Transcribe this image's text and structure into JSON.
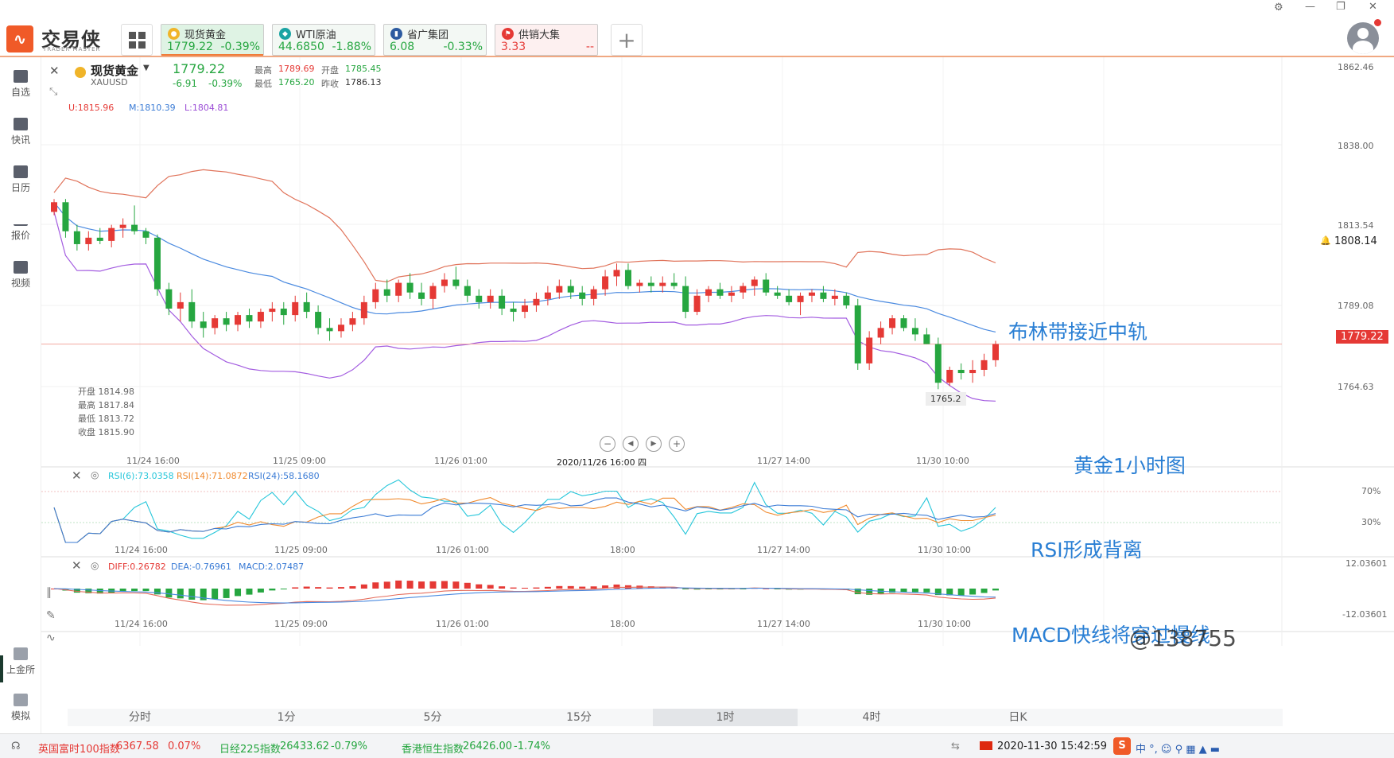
{
  "app": {
    "logo_text": "交易侠",
    "logo_sub": "TRADER MASTER"
  },
  "tabs": [
    {
      "name": "现货黄金",
      "price": "1779.22",
      "change": "-0.39%",
      "icon_color": "#f0b429"
    },
    {
      "name": "WTI原油",
      "price": "44.6850",
      "change": "-1.88%",
      "icon_color": "#1aa3a3"
    },
    {
      "name": "省广集团",
      "price": "6.08",
      "change": "-0.33%",
      "icon_color": "#2c5aa0"
    },
    {
      "name": "供销大集",
      "price": "3.33",
      "change": "--",
      "icon_color": "#e53935"
    }
  ],
  "sidebar": {
    "items": [
      "自选",
      "快讯",
      "日历",
      "报价",
      "视频"
    ],
    "bottom_items": [
      "上金所",
      "模拟"
    ]
  },
  "instrument": {
    "name": "现货黄金",
    "code": "XAUUSD",
    "price": "1779.22",
    "change": "-6.91",
    "change_pct": "-0.39%",
    "high_label": "最高",
    "high": "1789.69",
    "open_label": "开盘",
    "open": "1785.45",
    "low_label": "最低",
    "low": "1765.20",
    "prev_label": "昨收",
    "prev": "1786.13"
  },
  "boll": {
    "u": "U:1815.96",
    "m": "M:1810.39",
    "l": "L:1804.81"
  },
  "ohlc_tooltip": {
    "open": "开盘 1814.98",
    "high": "最高 1817.84",
    "low": "最低 1813.72",
    "close": "收盘 1815.90"
  },
  "price_axis": {
    "labels": [
      "1862.46",
      "1838.00",
      "1813.54",
      "1789.08",
      "1764.63"
    ],
    "current": "1779.22",
    "alert": "1808.14"
  },
  "main_time_labels": [
    "11/24 16:00",
    "11/25 09:00",
    "11/26 01:00",
    "2020/11/26 16:00 四",
    "11/27 14:00",
    "11/30 10:00"
  ],
  "low_marker": "1765.2",
  "rsi": {
    "r6": "RSI(6):73.0358",
    "r14": "RSI(14):71.0872",
    "r24": "RSI(24):58.1680",
    "l70": "70%",
    "l30": "30%",
    "time_labels": [
      "11/24 16:00",
      "11/25 09:00",
      "11/26 01:00",
      "18:00",
      "11/27 14:00",
      "11/30 10:00"
    ]
  },
  "macd": {
    "diff": "DIFF:0.26782",
    "dea": "DEA:-0.76961",
    "macd": "MACD:2.07487",
    "top": "12.03601",
    "bottom": "-12.03601",
    "time_labels": [
      "11/24 16:00",
      "11/25 09:00",
      "11/26 01:00",
      "18:00",
      "11/27 14:00",
      "11/30 10:00"
    ]
  },
  "periods": [
    "分时",
    "1分",
    "5分",
    "15分",
    "1时",
    "4时",
    "日K"
  ],
  "active_period": "1时",
  "annotations": {
    "boll": "布林带接近中轨",
    "title": "黄金1小时图",
    "rsi": "RSI形成背离",
    "macd": "MACD快线将穿过慢线",
    "watermark": "@138755"
  },
  "ticker": [
    {
      "name": "英国富时100指数",
      "value": "6367.58",
      "change": "0.07%"
    },
    {
      "name": "日经225指数",
      "value": "26433.62",
      "change": "-0.79%"
    },
    {
      "name": "香港恒生指数",
      "value": "26426.00",
      "change": "-1.74%"
    }
  ],
  "datetime": "2020-11-30 15:42:59",
  "chart_data": {
    "type": "candlestick",
    "title": "现货黄金 XAUUSD 1时",
    "candles": [
      [
        1820,
        1824,
        1819,
        1823
      ],
      [
        1823,
        1824,
        1812,
        1814
      ],
      [
        1814,
        1816,
        1808,
        1810
      ],
      [
        1810,
        1814,
        1808,
        1812
      ],
      [
        1812,
        1815,
        1810,
        1811
      ],
      [
        1811,
        1816,
        1809,
        1815
      ],
      [
        1815,
        1818,
        1812,
        1816
      ],
      [
        1816,
        1822,
        1813,
        1814
      ],
      [
        1814,
        1815,
        1810,
        1812
      ],
      [
        1812,
        1813,
        1794,
        1796
      ],
      [
        1796,
        1798,
        1788,
        1790
      ],
      [
        1790,
        1795,
        1786,
        1792
      ],
      [
        1792,
        1796,
        1784,
        1786
      ],
      [
        1786,
        1789,
        1781,
        1784
      ],
      [
        1784,
        1788,
        1782,
        1787
      ],
      [
        1787,
        1789,
        1783,
        1785
      ],
      [
        1785,
        1789,
        1783,
        1788
      ],
      [
        1788,
        1790,
        1784,
        1786
      ],
      [
        1786,
        1790,
        1784,
        1789
      ],
      [
        1789,
        1792,
        1786,
        1790
      ],
      [
        1790,
        1792,
        1785,
        1788
      ],
      [
        1788,
        1794,
        1786,
        1792
      ],
      [
        1792,
        1795,
        1787,
        1789
      ],
      [
        1789,
        1791,
        1782,
        1784
      ],
      [
        1784,
        1787,
        1780,
        1783
      ],
      [
        1783,
        1787,
        1781,
        1785
      ],
      [
        1785,
        1789,
        1783,
        1787
      ],
      [
        1787,
        1794,
        1785,
        1792
      ],
      [
        1792,
        1798,
        1790,
        1796
      ],
      [
        1796,
        1799,
        1792,
        1794
      ],
      [
        1794,
        1799,
        1792,
        1798
      ],
      [
        1798,
        1801,
        1793,
        1795
      ],
      [
        1795,
        1798,
        1791,
        1793
      ],
      [
        1793,
        1798,
        1790,
        1797
      ],
      [
        1797,
        1801,
        1795,
        1799
      ],
      [
        1799,
        1803,
        1796,
        1797
      ],
      [
        1797,
        1799,
        1792,
        1794
      ],
      [
        1794,
        1796,
        1790,
        1792
      ],
      [
        1792,
        1796,
        1790,
        1794
      ],
      [
        1794,
        1796,
        1788,
        1790
      ],
      [
        1790,
        1792,
        1786,
        1789
      ],
      [
        1789,
        1793,
        1787,
        1791
      ],
      [
        1791,
        1795,
        1789,
        1793
      ],
      [
        1793,
        1797,
        1791,
        1795
      ],
      [
        1795,
        1799,
        1793,
        1797
      ],
      [
        1797,
        1799,
        1793,
        1795
      ],
      [
        1795,
        1797,
        1791,
        1793
      ],
      [
        1793,
        1797,
        1791,
        1796
      ],
      [
        1796,
        1802,
        1794,
        1800
      ],
      [
        1800,
        1804,
        1797,
        1802
      ],
      [
        1802,
        1804,
        1796,
        1797
      ],
      [
        1797,
        1799,
        1795,
        1798
      ],
      [
        1798,
        1800,
        1795,
        1797
      ],
      [
        1797,
        1800,
        1795,
        1798
      ],
      [
        1798,
        1801,
        1796,
        1797
      ],
      [
        1797,
        1800,
        1787,
        1789
      ],
      [
        1789,
        1796,
        1788,
        1794
      ],
      [
        1794,
        1797,
        1792,
        1796
      ],
      [
        1796,
        1798,
        1793,
        1794
      ],
      [
        1794,
        1797,
        1792,
        1795
      ],
      [
        1795,
        1798,
        1793,
        1797
      ],
      [
        1797,
        1800,
        1794,
        1799
      ],
      [
        1799,
        1801,
        1794,
        1795
      ],
      [
        1795,
        1797,
        1793,
        1794
      ],
      [
        1794,
        1796,
        1791,
        1792
      ],
      [
        1792,
        1795,
        1788,
        1794
      ],
      [
        1794,
        1796,
        1792,
        1795
      ],
      [
        1795,
        1797,
        1792,
        1793
      ],
      [
        1793,
        1796,
        1791,
        1794
      ],
      [
        1794,
        1795,
        1790,
        1791
      ],
      [
        1791,
        1793,
        1771,
        1773
      ],
      [
        1773,
        1783,
        1771,
        1781
      ],
      [
        1781,
        1786,
        1779,
        1784
      ],
      [
        1784,
        1788,
        1782,
        1787
      ],
      [
        1787,
        1788,
        1783,
        1784
      ],
      [
        1784,
        1787,
        1780,
        1782
      ],
      [
        1782,
        1784,
        1779,
        1779
      ],
      [
        1779,
        1781,
        1765,
        1767
      ],
      [
        1767,
        1772,
        1766,
        1771
      ],
      [
        1771,
        1773,
        1768,
        1770
      ],
      [
        1770,
        1774,
        1767,
        1771
      ],
      [
        1771,
        1776,
        1769,
        1774
      ],
      [
        1774,
        1780,
        1772,
        1779
      ]
    ],
    "ylim": [
      1752,
      1866
    ]
  }
}
